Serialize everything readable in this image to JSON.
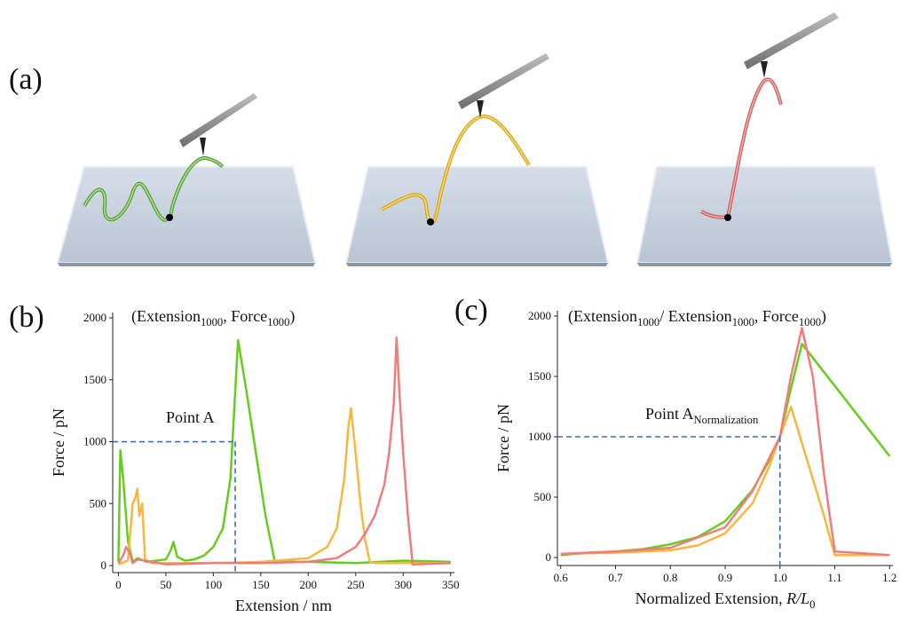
{
  "panel_labels": [
    "(a)",
    "(b)",
    "(c)"
  ],
  "chart_data": [
    {
      "type": "line",
      "annotation": [
        {
          "text": "(Extension"
        },
        {
          "text": "1000",
          "sub": true
        },
        {
          "text": ",  Force"
        },
        {
          "text": "1000",
          "sub": true
        },
        {
          "text": ")"
        }
      ],
      "xlabel": [
        {
          "text": "Extension / nm"
        }
      ],
      "ylabel": "Force / pN",
      "xlim": [
        -6,
        354
      ],
      "ylim": [
        -57,
        2043
      ],
      "xticks": [
        0,
        50,
        100,
        150,
        200,
        250,
        300,
        350
      ],
      "yticks": [
        0,
        500,
        1000,
        1500,
        2000
      ],
      "point": {
        "x": 123,
        "y": 1000
      },
      "point_label": [
        {
          "text": "Point A"
        }
      ],
      "series": [
        {
          "color": "#66cc1e",
          "x": [
            0,
            2,
            5,
            10,
            15,
            20,
            30,
            40,
            50,
            55,
            58,
            62,
            70,
            80,
            90,
            100,
            110,
            118,
            126,
            135,
            145,
            155,
            165,
            175,
            200,
            250,
            300,
            350
          ],
          "values": [
            30,
            930,
            700,
            200,
            30,
            60,
            30,
            40,
            50,
            120,
            190,
            70,
            40,
            50,
            80,
            150,
            300,
            700,
            1820,
            1400,
            900,
            400,
            20,
            30,
            30,
            20,
            40,
            30
          ]
        },
        {
          "color": "#f7b640",
          "x": [
            0,
            10,
            15,
            18,
            20,
            22,
            25,
            28,
            35,
            50,
            100,
            150,
            200,
            220,
            230,
            238,
            242,
            245,
            250,
            255,
            260,
            265,
            270,
            300,
            350
          ],
          "values": [
            10,
            40,
            500,
            550,
            620,
            400,
            500,
            50,
            20,
            20,
            20,
            30,
            60,
            150,
            300,
            700,
            1100,
            1270,
            900,
            500,
            200,
            30,
            20,
            20,
            20
          ]
        },
        {
          "color": "#f07c7c",
          "x": [
            0,
            5,
            8,
            12,
            15,
            20,
            50,
            100,
            150,
            200,
            230,
            250,
            260,
            270,
            280,
            285,
            290,
            293,
            296,
            300,
            305,
            310,
            350
          ],
          "values": [
            20,
            80,
            150,
            100,
            20,
            50,
            10,
            20,
            20,
            30,
            60,
            150,
            260,
            400,
            650,
            900,
            1300,
            1840,
            1400,
            900,
            400,
            10,
            20
          ]
        }
      ]
    },
    {
      "type": "line",
      "annotation": [
        {
          "text": "(Extension"
        },
        {
          "text": "1000",
          "sub": true
        },
        {
          "text": "/  Extension"
        },
        {
          "text": "1000",
          "sub": true
        },
        {
          "text": ",  Force"
        },
        {
          "text": "1000",
          "sub": true
        },
        {
          "text": ")"
        }
      ],
      "xlabel": [
        {
          "text": "Normalized Extension, "
        },
        {
          "text": "R/L",
          "italic": true
        },
        {
          "text": "0",
          "sub": true
        }
      ],
      "ylabel": "Force / pN",
      "xlim": [
        0.594,
        1.206
      ],
      "ylim": [
        -66,
        2044
      ],
      "xticks": [
        0.6,
        0.7,
        0.8,
        0.9,
        {
          "value": 1,
          "label": "1.0"
        },
        1.1,
        1.2
      ],
      "yticks": [
        0,
        500,
        1000,
        1500,
        2000
      ],
      "point": {
        "x": 1,
        "y": 1000
      },
      "point_label": [
        {
          "text": "Point A"
        },
        {
          "text": "Normalization",
          "sub": true
        }
      ],
      "series": [
        {
          "color": "#66cc1e",
          "x": [
            0.6,
            0.65,
            0.7,
            0.75,
            0.8,
            0.85,
            0.9,
            0.95,
            0.98,
            1.0,
            1.02,
            1.04,
            1.2
          ],
          "values": [
            20,
            40,
            50,
            70,
            110,
            170,
            300,
            560,
            800,
            1000,
            1400,
            1770,
            840
          ]
        },
        {
          "color": "#f7b640",
          "x": [
            0.6,
            0.7,
            0.8,
            0.85,
            0.9,
            0.95,
            0.98,
            1.0,
            1.02,
            1.05,
            1.08,
            1.1,
            1.2
          ],
          "values": [
            30,
            40,
            60,
            100,
            200,
            450,
            750,
            1000,
            1250,
            800,
            350,
            20,
            20
          ]
        },
        {
          "color": "#f07c7c",
          "x": [
            0.6,
            0.7,
            0.8,
            0.9,
            0.95,
            1.0,
            1.02,
            1.04,
            1.06,
            1.08,
            1.1,
            1.2
          ],
          "values": [
            30,
            50,
            80,
            250,
            550,
            1000,
            1500,
            1900,
            1500,
            700,
            50,
            20
          ]
        }
      ]
    }
  ]
}
